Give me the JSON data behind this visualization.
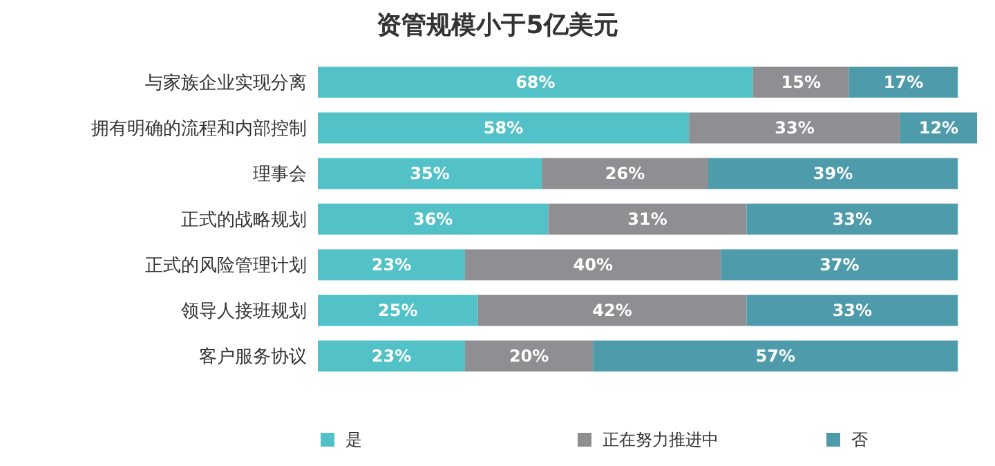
{
  "chart_data": {
    "type": "bar",
    "orientation": "horizontal",
    "stacked": true,
    "title": "资管规模小于5亿美元",
    "categories": [
      "与家族企业实现分离",
      "拥有明确的流程和内部控制",
      "理事会",
      "正式的战略规划",
      "正式的风险管理计划",
      "领导人接班规划",
      "客户服务协议"
    ],
    "series": [
      {
        "name": "是",
        "color": "#52c2c8",
        "values": [
          68,
          58,
          35,
          36,
          23,
          25,
          23
        ],
        "value_labels": [
          "68%",
          "58%",
          "35%",
          "36%",
          "23%",
          "25%",
          "23%"
        ]
      },
      {
        "name": "正在努力推进中",
        "color": "#8e8e93",
        "values": [
          15,
          33,
          26,
          31,
          40,
          42,
          20
        ],
        "value_labels": [
          "15%",
          "33%",
          "26%",
          "31%",
          "40%",
          "42%",
          "20%"
        ]
      },
      {
        "name": "否",
        "color": "#4e9bab",
        "values": [
          17,
          12,
          39,
          33,
          37,
          33,
          57
        ],
        "value_labels": [
          "17%",
          "12%",
          "39%",
          "33%",
          "37%",
          "33%",
          "57%"
        ]
      }
    ],
    "legend": "bottom",
    "grid": false
  }
}
